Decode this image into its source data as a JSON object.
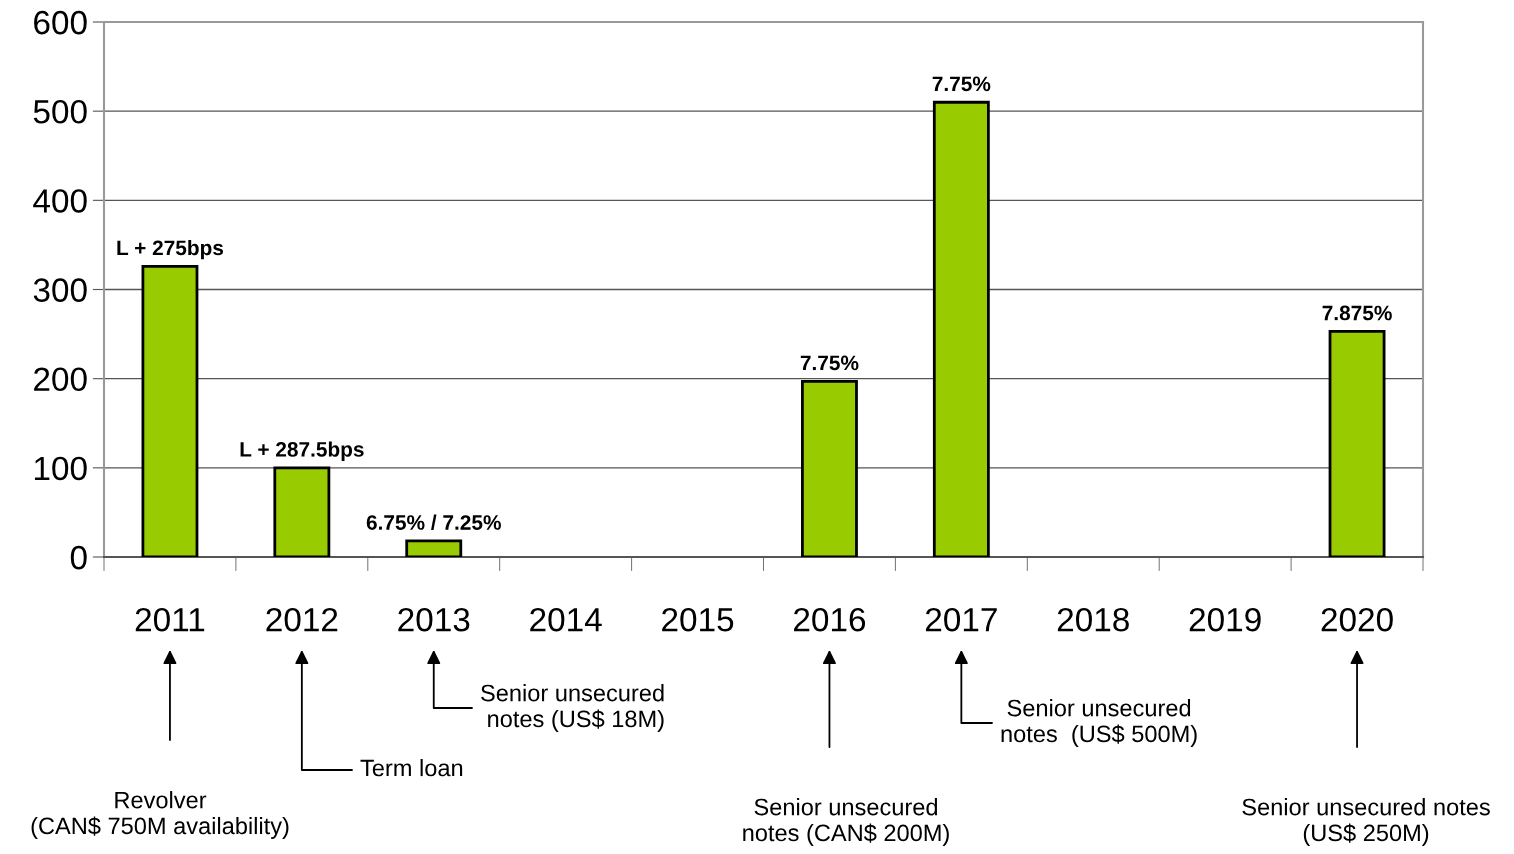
{
  "chart_data": {
    "type": "bar",
    "categories": [
      "2011",
      "2012",
      "2013",
      "2014",
      "2015",
      "2016",
      "2017",
      "2018",
      "2019",
      "2020"
    ],
    "values": [
      326,
      100,
      18,
      null,
      null,
      197,
      510,
      null,
      null,
      253
    ],
    "color": "#99cc00",
    "ylim": [
      0,
      600
    ],
    "yticks": [
      0,
      100,
      200,
      300,
      400,
      500,
      600
    ],
    "grid": "y",
    "legend": false,
    "annotations": [
      {
        "text": "L + 275bps",
        "x": "2011",
        "y": 326
      },
      {
        "text": "L + 287.5bps",
        "x": "2012",
        "y": 100
      },
      {
        "text": "6.75% / 7.25%",
        "x": "2013",
        "y": 18
      },
      {
        "text": "7.75%",
        "x": "2016",
        "y": 197
      },
      {
        "text": "7.75%",
        "x": "2017",
        "y": 510
      },
      {
        "text": "7.875%",
        "x": "2020",
        "y": 253
      },
      "Revolver\n(CAN$ 750M availability)",
      "Term loan",
      "Senior unsecured\n notes (US$ 18M)",
      "Senior unsecured\nnotes (CAN$ 200M)",
      "Senior unsecured\nnotes  (US$ 500M)",
      "Senior unsecured notes\n(US$ 250M)"
    ]
  }
}
